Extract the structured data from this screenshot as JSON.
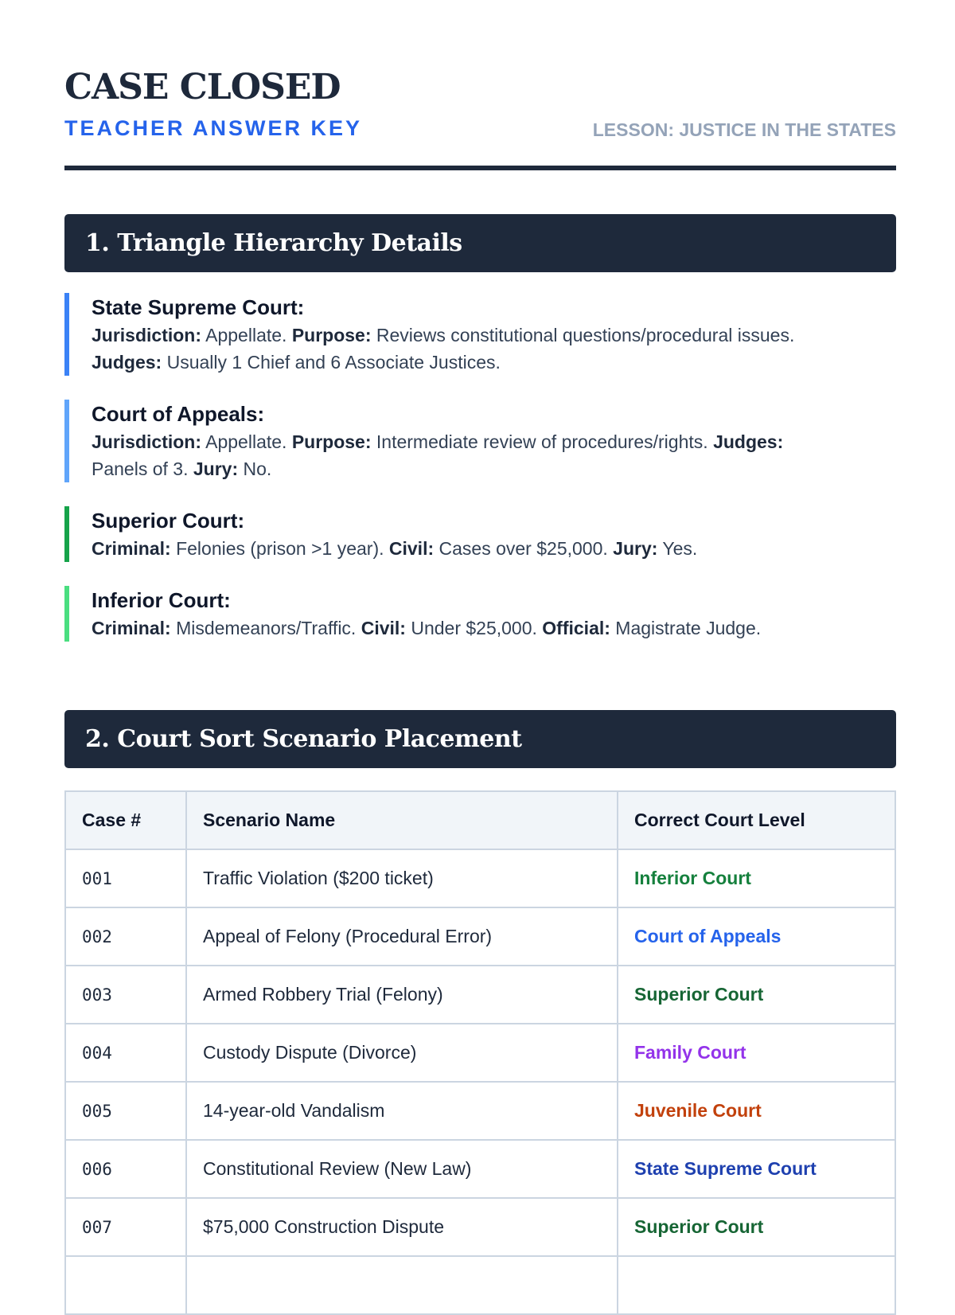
{
  "header": {
    "title": "CASE CLOSED",
    "subtitle": "TEACHER ANSWER KEY",
    "lesson": "LESSON: JUSTICE IN THE STATES"
  },
  "section1": {
    "title": "1. Triangle Hierarchy Details",
    "items": [
      {
        "name": "State Supreme Court:",
        "color": "#3b82f6",
        "lines": [
          [
            [
              "Jurisdiction:",
              " Appellate. "
            ],
            [
              "Purpose:",
              " Reviews constitutional questions/procedural issues."
            ]
          ],
          [
            [
              "Judges:",
              " Usually 1 Chief and 6 Associate Justices."
            ]
          ]
        ]
      },
      {
        "name": "Court of Appeals:",
        "color": "#60a5fa",
        "lines": [
          [
            [
              "Jurisdiction:",
              " Appellate. "
            ],
            [
              "Purpose:",
              " Intermediate review of procedures/rights. "
            ],
            [
              "Judges:",
              ""
            ]
          ],
          [
            [
              "",
              "Panels of 3. "
            ],
            [
              "Jury:",
              " No."
            ]
          ]
        ]
      },
      {
        "name": "Superior Court:",
        "color": "#16a34a",
        "lines": [
          [
            [
              "Criminal:",
              " Felonies (prison >1 year). "
            ],
            [
              "Civil:",
              " Cases over $25,000. "
            ],
            [
              "Jury:",
              " Yes."
            ]
          ]
        ]
      },
      {
        "name": "Inferior Court:",
        "color": "#4ade80",
        "lines": [
          [
            [
              "Criminal:",
              " Misdemeanors/Traffic. "
            ],
            [
              "Civil:",
              " Under $25,000. "
            ],
            [
              "Official:",
              " Magistrate Judge."
            ]
          ]
        ]
      }
    ]
  },
  "section2": {
    "title": "2. Court Sort Scenario Placement",
    "columns": [
      "Case #",
      "Scenario Name",
      "Correct Court Level"
    ],
    "rows": [
      {
        "case": "001",
        "scenario": "Traffic Violation ($200 ticket)",
        "court": "Inferior Court",
        "color": "#15803d"
      },
      {
        "case": "002",
        "scenario": "Appeal of Felony (Procedural Error)",
        "court": "Court of Appeals",
        "color": "#2563eb"
      },
      {
        "case": "003",
        "scenario": "Armed Robbery Trial (Felony)",
        "court": "Superior Court",
        "color": "#166534"
      },
      {
        "case": "004",
        "scenario": "Custody Dispute (Divorce)",
        "court": "Family Court",
        "color": "#9333ea"
      },
      {
        "case": "005",
        "scenario": "14-year-old Vandalism",
        "court": "Juvenile Court",
        "color": "#c2410c"
      },
      {
        "case": "006",
        "scenario": "Constitutional Review (New Law)",
        "court": "State Supreme Court",
        "color": "#1e40af"
      },
      {
        "case": "007",
        "scenario": "$75,000 Construction Dispute",
        "court": "Superior Court",
        "color": "#166534"
      }
    ]
  }
}
